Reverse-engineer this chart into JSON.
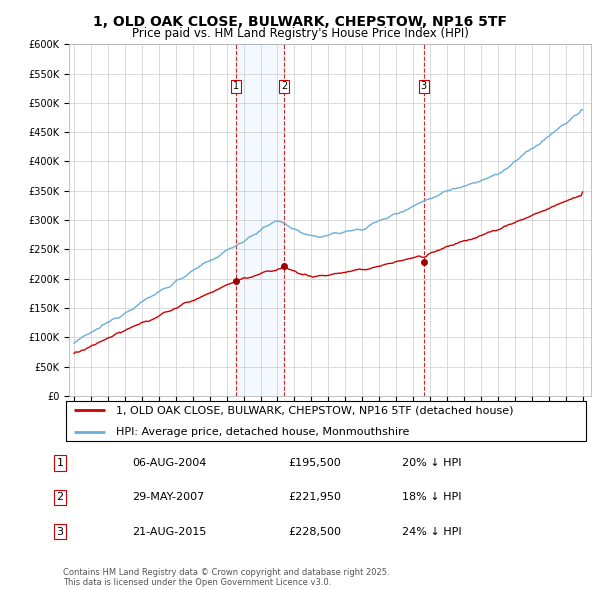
{
  "title": "1, OLD OAK CLOSE, BULWARK, CHEPSTOW, NP16 5TF",
  "subtitle": "Price paid vs. HM Land Registry's House Price Index (HPI)",
  "legend_line1": "1, OLD OAK CLOSE, BULWARK, CHEPSTOW, NP16 5TF (detached house)",
  "legend_line2": "HPI: Average price, detached house, Monmouthshire",
  "sale1_label": "1",
  "sale1_date": "06-AUG-2004",
  "sale1_price": "£195,500",
  "sale1_hpi": "20% ↓ HPI",
  "sale2_label": "2",
  "sale2_date": "29-MAY-2007",
  "sale2_price": "£221,950",
  "sale2_hpi": "18% ↓ HPI",
  "sale3_label": "3",
  "sale3_date": "21-AUG-2015",
  "sale3_price": "£228,500",
  "sale3_hpi": "24% ↓ HPI",
  "footer": "Contains HM Land Registry data © Crown copyright and database right 2025.\nThis data is licensed under the Open Government Licence v3.0.",
  "hpi_color": "#6baed6",
  "price_color": "#cc0000",
  "sale_marker_color": "#990000",
  "vline_color": "#cc0000",
  "shade_color": "#ddeeff",
  "grid_color": "#cccccc",
  "bg_color": "#ffffff",
  "ylim": [
    0,
    600000
  ],
  "yticks": [
    0,
    50000,
    100000,
    150000,
    200000,
    250000,
    300000,
    350000,
    400000,
    450000,
    500000,
    550000,
    600000
  ],
  "xlim_start": 1994.7,
  "xlim_end": 2025.5,
  "sale1_x": 2004.58,
  "sale2_x": 2007.38,
  "sale3_x": 2015.63,
  "sale1_y": 195500,
  "sale2_y": 221950,
  "sale3_y": 228500,
  "title_fontsize": 10,
  "subtitle_fontsize": 8.5,
  "tick_fontsize": 7,
  "legend_fontsize": 8,
  "table_fontsize": 8,
  "footer_fontsize": 6
}
